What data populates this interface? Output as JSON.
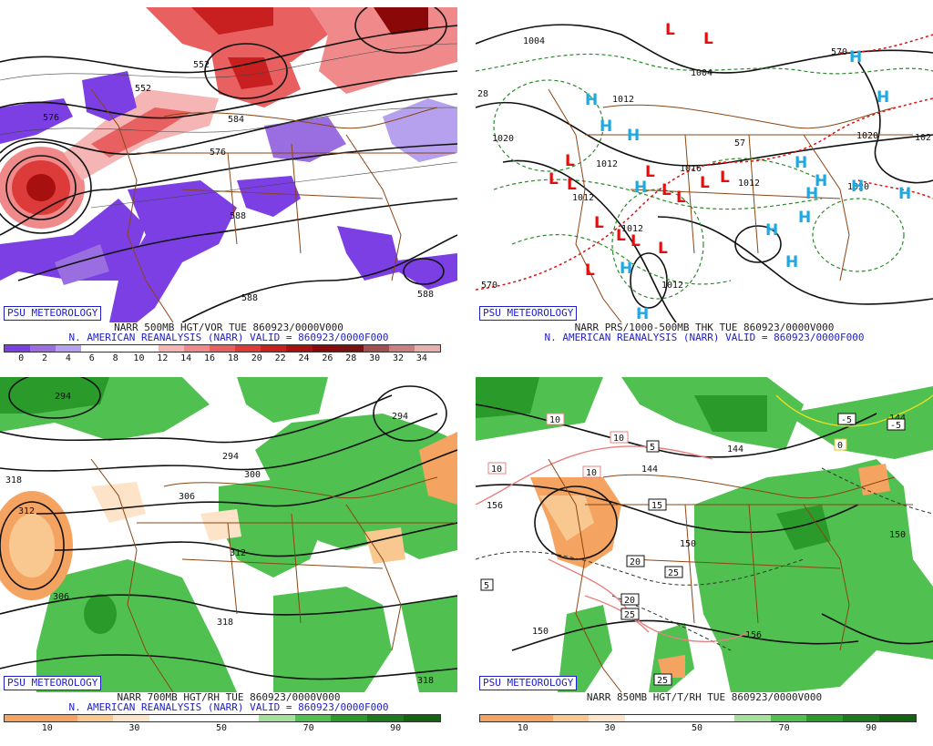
{
  "panels": [
    {
      "id": "p0",
      "badge": "PSU METEOROLOGY",
      "line1": "NARR 500MB HGT/VOR TUE 860923/0000V000",
      "line2": "N. AMERICAN REANALYSIS (NARR) VALID = 860923/0000F000",
      "scale_colors": [
        "#7b3fe4",
        "#9a6ee0",
        "#b6a1ee",
        "#ffffff",
        "#ffffff",
        "#ffffff",
        "#f5b5b5",
        "#f08a8a",
        "#e86060",
        "#dd3a3a",
        "#c82020",
        "#a81010",
        "#8a0808",
        "#7a1010",
        "#a05050",
        "#c88080",
        "#e4b0b0"
      ],
      "scale_labels": [
        "0",
        "2",
        "4",
        "6",
        "8",
        "10",
        "12",
        "14",
        "16",
        "18",
        "20",
        "22",
        "24",
        "26",
        "28",
        "30",
        "32",
        "34"
      ],
      "map_labels": [
        "552",
        "576",
        "552",
        "584",
        "576",
        "588",
        "588",
        "588"
      ]
    },
    {
      "id": "p1",
      "badge": "PSU METEOROLOGY",
      "line1": "NARR PRS/1000-500MB THK TUE 860923/0000V000",
      "line2": "N. AMERICAN REANALYSIS (NARR) VALID = 860923/0000F000",
      "map_labels": [
        "1004",
        "1012",
        "1004",
        "1012",
        "1020",
        "1012",
        "1012",
        "1016",
        "1012",
        "1012",
        "1020",
        "1020",
        "102",
        "28",
        "570",
        "570",
        "57"
      ],
      "highs": [
        "H",
        "H",
        "H",
        "H",
        "H",
        "H",
        "H",
        "H",
        "H",
        "H",
        "H",
        "H",
        "H",
        "H",
        "H",
        "H"
      ],
      "lows": [
        "L",
        "L",
        "L",
        "L",
        "L",
        "L",
        "L",
        "L",
        "L",
        "L",
        "L",
        "L",
        "L",
        "L",
        "L"
      ]
    },
    {
      "id": "p2",
      "badge": "PSU METEOROLOGY",
      "line1": "NARR 700MB HGT/RH TUE 860923/0000V000",
      "line2": "N. AMERICAN REANALYSIS (NARR) VALID = 860923/0000F000",
      "scale_colors": [
        "#f4a460",
        "#f4a460",
        "#f8c890",
        "#fde4c8",
        "#ffffff",
        "#ffffff",
        "#ffffff",
        "#a8e0a0",
        "#50c050",
        "#2a9a2a",
        "#1e7a1e",
        "#136313"
      ],
      "scale_labels": [
        "10",
        "30",
        "50",
        "70",
        "90"
      ],
      "map_labels": [
        "294",
        "294",
        "294",
        "300",
        "306",
        "318",
        "312",
        "312",
        "306",
        "318",
        "318"
      ]
    },
    {
      "id": "p3",
      "badge": "PSU METEOROLOGY",
      "line1": "NARR 850MB HGT/T/RH TUE 860923/0000V000",
      "scale_colors": [
        "#f4a460",
        "#f4a460",
        "#f8c890",
        "#fde4c8",
        "#ffffff",
        "#ffffff",
        "#ffffff",
        "#a8e0a0",
        "#50c050",
        "#2a9a2a",
        "#1e7a1e",
        "#136313"
      ],
      "scale_labels": [
        "10",
        "30",
        "50",
        "70",
        "90"
      ],
      "map_labels": [
        "144",
        "144",
        "144",
        "150",
        "150",
        "156",
        "156",
        "150"
      ],
      "temp_boxes": [
        "10",
        "10",
        "10",
        "10",
        "5",
        "15",
        "20",
        "20",
        "25",
        "25",
        "25",
        "5",
        "-5",
        "0",
        "-5"
      ]
    }
  ]
}
